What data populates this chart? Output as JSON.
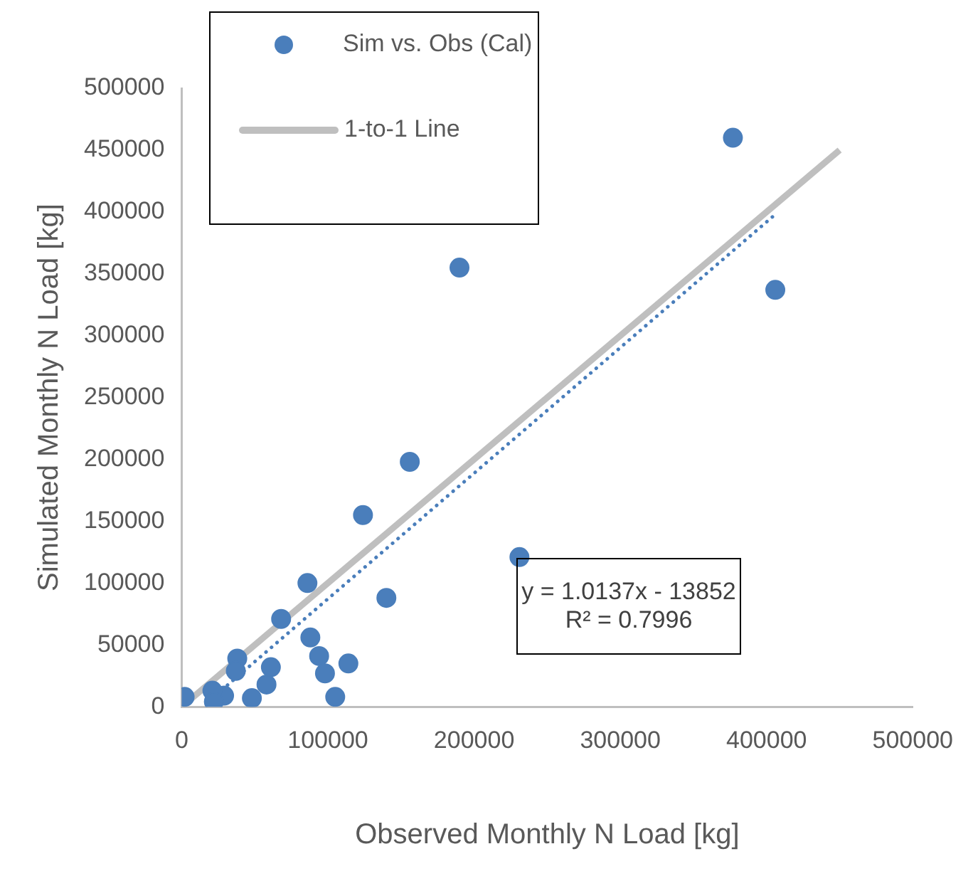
{
  "chart_data": {
    "type": "scatter",
    "xlabel": "Observed Monthly N Load [kg]",
    "ylabel": "Simulated Monthly N Load [kg]",
    "xlim": [
      0,
      500000
    ],
    "xticks": [
      0,
      100000,
      200000,
      300000,
      400000,
      500000
    ],
    "ylim": [
      0,
      500000
    ],
    "yticks": [
      0,
      50000,
      100000,
      150000,
      200000,
      250000,
      300000,
      350000,
      400000,
      450000,
      500000
    ],
    "grid": false,
    "legend": "top left",
    "marker": "circle",
    "annotations": [
      "y = 1.0137x - 13852",
      "R² = 0.7996"
    ],
    "series": [
      {
        "name": "Sim vs. Obs (Cal)",
        "color": "#4a7ebb",
        "x": [
          377000,
          190000,
          406000,
          231000,
          156000,
          124000,
          86000,
          140000,
          68000,
          88000,
          94000,
          114000,
          98000,
          61000,
          38000,
          37000,
          58000,
          105000,
          48000,
          29000,
          21000,
          22000,
          2000
        ],
        "values": [
          460000,
          355000,
          337000,
          121000,
          198000,
          155000,
          100000,
          88000,
          71000,
          56000,
          41000,
          35000,
          27000,
          32000,
          39000,
          29000,
          18000,
          8000,
          7000,
          9000,
          13000,
          4000,
          8000
        ]
      },
      {
        "name": "1-to-1 Line",
        "type": "line",
        "color": "#bfbfbf",
        "marker": "none",
        "line_style": "solid",
        "x": [
          0,
          450000
        ],
        "values": [
          0,
          450000
        ]
      },
      {
        "type": "line",
        "color": "#4a7ebb",
        "marker": "none",
        "line_style": "dotted",
        "x": [
          20000,
          405000
        ],
        "values": [
          6000,
          397000
        ]
      }
    ]
  }
}
